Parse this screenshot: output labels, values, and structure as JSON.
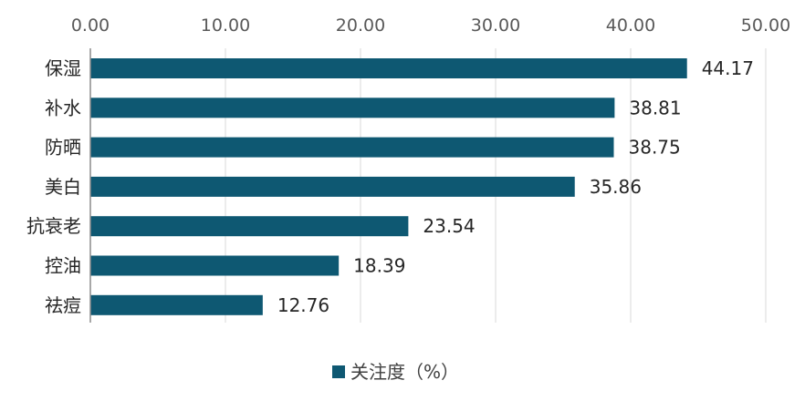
{
  "chart_data": {
    "type": "bar",
    "orientation": "horizontal",
    "categories": [
      "保湿",
      "补水",
      "防晒",
      "美白",
      "抗衰老",
      "控油",
      "祛痘"
    ],
    "series": [
      {
        "name": "关注度（%）",
        "values": [
          44.17,
          38.81,
          38.75,
          35.86,
          23.54,
          18.39,
          12.76
        ],
        "color": "#0e5872"
      }
    ],
    "data_labels": [
      "44.17",
      "38.81",
      "38.75",
      "35.86",
      "23.54",
      "18.39",
      "12.76"
    ],
    "xaxis": {
      "position": "top",
      "ticks": [
        0,
        10,
        20,
        30,
        40,
        50
      ],
      "tick_labels": [
        "0.00",
        "10.00",
        "20.00",
        "30.00",
        "40.00",
        "50.00"
      ],
      "range": [
        0,
        50
      ]
    },
    "grid": true,
    "grid_color": "#d9d9d9",
    "legend_position": "bottom"
  }
}
